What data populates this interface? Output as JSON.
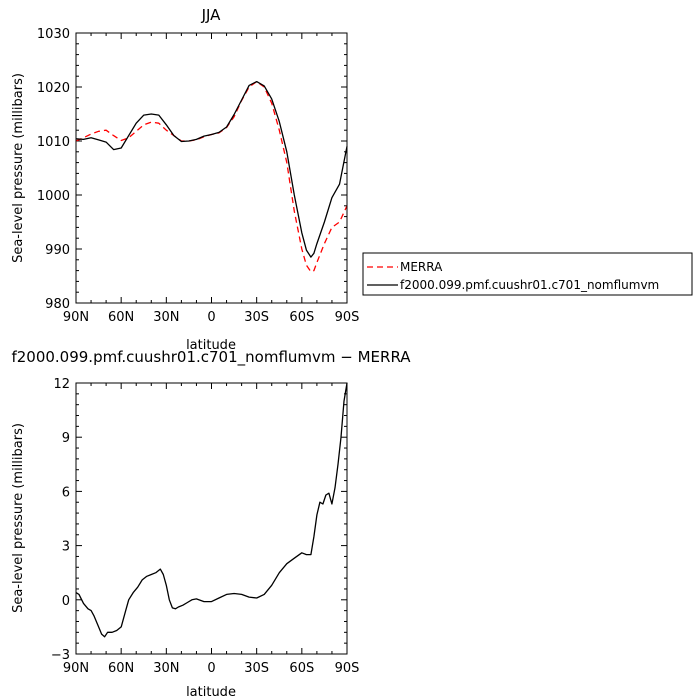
{
  "chart_data": [
    {
      "type": "line",
      "title": "JJA",
      "xlabel": "latitude",
      "ylabel": "Sea-level pressure (millibars)",
      "xlim": [
        90,
        -90
      ],
      "ylim": [
        980,
        1030
      ],
      "xtick_values": [
        90,
        60,
        30,
        0,
        -30,
        -60,
        -90
      ],
      "xtick_labels": [
        "90N",
        "60N",
        "30N",
        "0",
        "30S",
        "60S",
        "90S"
      ],
      "yticks": [
        980,
        990,
        1000,
        1010,
        1020,
        1030
      ],
      "grid": false,
      "legend_position": "right",
      "series": [
        {
          "name": "MERRA",
          "color": "#ff0000",
          "style": "dashed",
          "x": [
            90,
            85,
            80,
            75,
            70,
            65,
            60,
            55,
            50,
            45,
            40,
            35,
            30,
            25,
            20,
            15,
            10,
            5,
            0,
            -5,
            -10,
            -15,
            -20,
            -25,
            -30,
            -35,
            -40,
            -45,
            -50,
            -55,
            -60,
            -63,
            -66,
            -68,
            -70,
            -75,
            -80,
            -85,
            -90
          ],
          "y": [
            1010,
            1010.6,
            1011.3,
            1011.8,
            1012,
            1011,
            1010.1,
            1010.6,
            1011.8,
            1013,
            1013.5,
            1013.3,
            1012,
            1011,
            1010,
            1010,
            1010.2,
            1010.8,
            1011.2,
            1011.5,
            1012.5,
            1014.5,
            1017.5,
            1020,
            1021,
            1020,
            1017,
            1012,
            1006,
            997,
            990,
            987,
            985.8,
            986,
            987.5,
            991,
            994,
            995,
            998
          ]
        },
        {
          "name": "f2000.099.pmf.cuushr01.c701_nomflumvm",
          "color": "#000000",
          "style": "solid",
          "x": [
            90,
            85,
            80,
            75,
            70,
            65,
            60,
            55,
            50,
            45,
            40,
            35,
            30,
            25,
            20,
            15,
            10,
            5,
            0,
            -5,
            -10,
            -15,
            -20,
            -25,
            -30,
            -35,
            -40,
            -45,
            -50,
            -55,
            -60,
            -63,
            -66,
            -68,
            -70,
            -75,
            -80,
            -85,
            -90
          ],
          "y": [
            1010.4,
            1010.3,
            1010.6,
            1010.2,
            1009.8,
            1008.4,
            1008.7,
            1011,
            1013.3,
            1014.8,
            1015,
            1014.8,
            1013,
            1011,
            1009.9,
            1010,
            1010.3,
            1010.9,
            1011.2,
            1011.6,
            1012.6,
            1014.9,
            1017.6,
            1020.3,
            1021,
            1020.2,
            1017.8,
            1013.6,
            1008,
            1000,
            993,
            989.8,
            988.5,
            989.2,
            991,
            995,
            999.5,
            1002,
            1009
          ]
        }
      ]
    },
    {
      "type": "line",
      "title": "f2000.099.pmf.cuushr01.c701_nomflumvm − MERRA",
      "xlabel": "latitude",
      "ylabel": "Sea-level pressure (millibars)",
      "xlim": [
        90,
        -90
      ],
      "ylim": [
        -3,
        12
      ],
      "xtick_values": [
        90,
        60,
        30,
        0,
        -30,
        -60,
        -90
      ],
      "xtick_labels": [
        "90N",
        "60N",
        "30N",
        "0",
        "30S",
        "60S",
        "90S"
      ],
      "yticks": [
        -3,
        0,
        3,
        6,
        9,
        12
      ],
      "grid": false,
      "series": [
        {
          "color": "#000000",
          "style": "solid",
          "x": [
            90,
            88,
            85,
            82,
            80,
            78,
            75,
            73,
            71,
            69,
            66,
            63,
            60,
            57,
            55,
            52,
            49,
            46,
            43,
            40,
            37,
            34,
            32,
            30,
            28,
            26,
            24,
            22,
            19,
            16,
            13,
            10,
            5,
            0,
            -5,
            -10,
            -15,
            -20,
            -25,
            -30,
            -35,
            -40,
            -45,
            -50,
            -55,
            -60,
            -63,
            -66,
            -68,
            -70,
            -72,
            -74,
            -76,
            -78,
            -80,
            -82,
            -84,
            -86,
            -88,
            -90
          ],
          "y": [
            0.4,
            0.3,
            -0.2,
            -0.5,
            -0.6,
            -0.9,
            -1.5,
            -1.9,
            -2.05,
            -1.8,
            -1.8,
            -1.7,
            -1.5,
            -0.6,
            0,
            0.4,
            0.7,
            1.1,
            1.3,
            1.4,
            1.5,
            1.7,
            1.4,
            0.8,
            0,
            -0.45,
            -0.5,
            -0.4,
            -0.3,
            -0.15,
            0,
            0.05,
            -0.1,
            -0.1,
            0.1,
            0.3,
            0.35,
            0.3,
            0.15,
            0.1,
            0.3,
            0.8,
            1.5,
            2.0,
            2.3,
            2.6,
            2.5,
            2.5,
            3.5,
            4.7,
            5.4,
            5.3,
            5.8,
            5.9,
            5.3,
            6.2,
            7.5,
            9.0,
            11.0,
            12
          ]
        }
      ]
    }
  ]
}
